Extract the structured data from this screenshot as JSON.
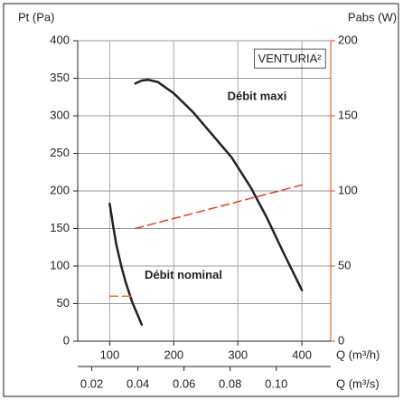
{
  "chart_data": {
    "type": "line",
    "y_label": "Pt (Pa)",
    "y2_label": "Pabs (W)",
    "x_label": "Q (m³/h)",
    "x2_label": "Q (m³/s)",
    "xlim": [
      50,
      445
    ],
    "xticks": [
      100,
      200,
      300,
      400
    ],
    "x2lim": [
      0.0139,
      0.1236
    ],
    "x2ticks": [
      0.02,
      0.04,
      0.06,
      0.08,
      {
        "value": 0.1,
        "label": "0.10"
      }
    ],
    "ylim": [
      0,
      400
    ],
    "yticks": [
      0,
      50,
      100,
      150,
      200,
      250,
      300,
      350,
      400
    ],
    "y2lim": [
      0,
      200
    ],
    "y2ticks": [
      0,
      50,
      100,
      150,
      200
    ],
    "y2_color": "#e8401c",
    "grid": true,
    "annotations": [
      {
        "text": "VENTURIA²",
        "x": 395,
        "y": 375,
        "boxed": true
      },
      {
        "text": "Débit maxi",
        "x": 330,
        "y": 325,
        "boxed": false
      },
      {
        "text": "Débit nominal",
        "x": 215,
        "y": 87,
        "boxed": false
      }
    ],
    "series": [
      {
        "color": "#222222",
        "dashed": false,
        "x": [
          140,
          150,
          160,
          175,
          200,
          230,
          260,
          290,
          320,
          345,
          370,
          400
        ],
        "values": [
          343,
          347,
          348,
          345,
          330,
          305,
          275,
          245,
          205,
          165,
          120,
          68
        ]
      },
      {
        "color": "#222222",
        "dashed": false,
        "x": [
          100,
          105,
          110,
          118,
          125,
          135,
          150
        ],
        "values": [
          183,
          155,
          130,
          100,
          78,
          52,
          22
        ]
      },
      {
        "color": "#e8401c",
        "dashed": true,
        "axis": "y2",
        "x": [
          140,
          400
        ],
        "values": [
          75,
          104
        ]
      },
      {
        "color": "#f07020",
        "dashed": true,
        "axis": "y2",
        "x": [
          100,
          135
        ],
        "values": [
          30,
          30
        ]
      }
    ]
  }
}
